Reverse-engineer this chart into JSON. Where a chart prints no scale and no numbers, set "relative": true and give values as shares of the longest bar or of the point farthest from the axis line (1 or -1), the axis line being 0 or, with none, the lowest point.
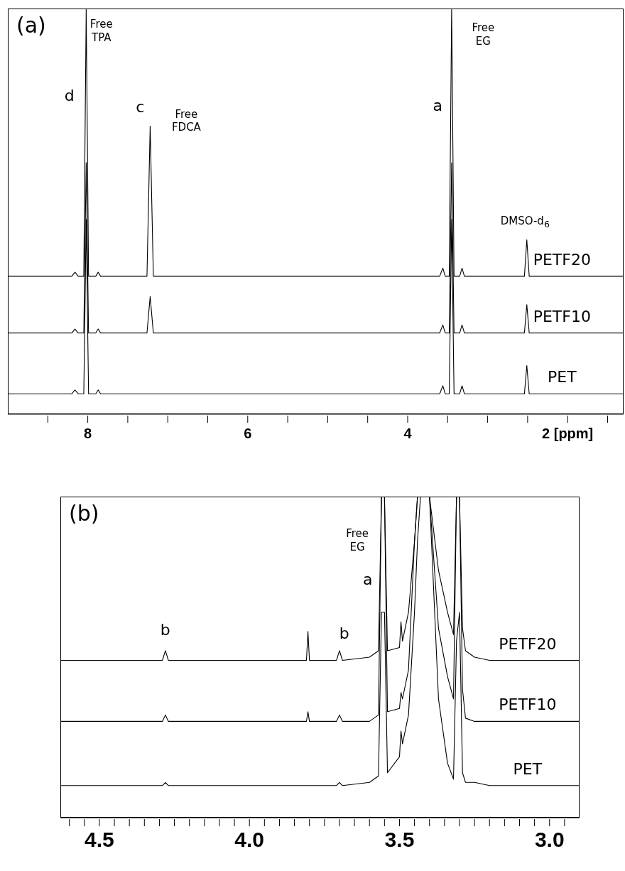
{
  "chart_data": [
    {
      "type": "line",
      "title": "(a)",
      "relative": true,
      "legend": false,
      "marker": "none",
      "line_style": "solid",
      "xlim": [
        9.0,
        1.3
      ],
      "xticks": [
        {
          "value": 8.5,
          "label": null
        },
        8,
        {
          "value": 7.5,
          "label": null
        },
        {
          "value": 7,
          "label": null
        },
        {
          "value": 6.5,
          "label": null
        },
        6,
        {
          "value": 5.5,
          "label": null
        },
        {
          "value": 5,
          "label": null
        },
        {
          "value": 4.5,
          "label": null
        },
        4,
        {
          "value": 3.5,
          "label": null
        },
        {
          "value": 3,
          "label": null
        },
        {
          "value": 2.5,
          "label": null
        },
        {
          "value": 2,
          "label": "2 [ppm]"
        },
        {
          "value": 1.5,
          "label": null
        }
      ],
      "x": [
        9.0,
        8.2,
        8.16,
        8.12,
        8.05,
        8.02,
        7.99,
        7.9,
        7.87,
        7.84,
        7.26,
        7.22,
        7.18,
        3.6,
        3.56,
        3.53,
        3.48,
        3.45,
        3.42,
        3.35,
        3.32,
        3.29,
        2.54,
        2.51,
        2.48,
        1.3
      ],
      "series": [
        {
          "name": "PETF20",
          "color": "#000000",
          "values": [
            0.34,
            0.34,
            0.35,
            0.34,
            0.34,
            1,
            0.34,
            0.34,
            0.35,
            0.34,
            0.34,
            0.71,
            0.34,
            0.34,
            0.36,
            0.34,
            0.34,
            1,
            0.34,
            0.34,
            0.36,
            0.34,
            0.34,
            0.43,
            0.34,
            0.34
          ]
        },
        {
          "name": "PETF10",
          "color": "#000000",
          "values": [
            0.2,
            0.2,
            0.21,
            0.2,
            0.2,
            0.62,
            0.2,
            0.2,
            0.21,
            0.2,
            0.2,
            0.29,
            0.2,
            0.2,
            0.22,
            0.2,
            0.2,
            0.62,
            0.2,
            0.2,
            0.22,
            0.2,
            0.2,
            0.27,
            0.2,
            0.2
          ]
        },
        {
          "name": "PET",
          "color": "#000000",
          "values": [
            0.05,
            0.05,
            0.06,
            0.05,
            0.05,
            0.48,
            0.05,
            0.05,
            0.06,
            0.05,
            0.05,
            0.05,
            0.05,
            0.05,
            0.07,
            0.05,
            0.05,
            0.48,
            0.05,
            0.05,
            0.07,
            0.05,
            0.05,
            0.12,
            0.05,
            0.05
          ]
        }
      ],
      "annotations": [
        "d",
        "Free TPA",
        "c",
        "Free FDCA",
        "a",
        "Free EG",
        "DMSO-d$_{6}$"
      ]
    },
    {
      "type": "line",
      "title": "(b)",
      "relative": true,
      "legend": false,
      "marker": "none",
      "line_style": "solid",
      "xlim": [
        4.63,
        2.9
      ],
      "xticks": [
        {
          "value": 4.6,
          "label": null
        },
        {
          "value": 4.55,
          "label": null
        },
        4.5,
        {
          "value": 4.45,
          "label": null
        },
        {
          "value": 4.4,
          "label": null
        },
        {
          "value": 4.35,
          "label": null
        },
        {
          "value": 4.3,
          "label": null
        },
        {
          "value": 4.25,
          "label": null
        },
        {
          "value": 4.2,
          "label": null
        },
        {
          "value": 4.15,
          "label": null
        },
        {
          "value": 4.1,
          "label": null
        },
        {
          "value": 4.05,
          "label": null
        },
        {
          "value": 4,
          "label": "4.0"
        },
        {
          "value": 3.95,
          "label": null
        },
        {
          "value": 3.9,
          "label": null
        },
        {
          "value": 3.85,
          "label": null
        },
        {
          "value": 3.8,
          "label": null
        },
        {
          "value": 3.75,
          "label": null
        },
        {
          "value": 3.7,
          "label": null
        },
        {
          "value": 3.65,
          "label": null
        },
        {
          "value": 3.6,
          "label": null
        },
        {
          "value": 3.55,
          "label": null
        },
        3.5,
        {
          "value": 3.45,
          "label": null
        },
        {
          "value": 3.4,
          "label": null
        },
        {
          "value": 3.35,
          "label": null
        },
        {
          "value": 3.3,
          "label": null
        },
        {
          "value": 3.25,
          "label": null
        },
        {
          "value": 3.2,
          "label": null
        },
        {
          "value": 3.15,
          "label": null
        },
        {
          "value": 3.1,
          "label": null
        },
        {
          "value": 3.05,
          "label": null
        },
        {
          "value": 3,
          "label": "3.0"
        },
        {
          "value": 2.95,
          "label": null
        }
      ],
      "x": [
        4.63,
        4.4,
        4.29,
        4.28,
        4.27,
        4.0,
        3.81,
        3.805,
        3.8,
        3.71,
        3.7,
        3.69,
        3.6,
        3.57,
        3.56,
        3.55,
        3.54,
        3.5,
        3.495,
        3.49,
        3.47,
        3.45,
        3.44,
        3.43,
        3.4,
        3.37,
        3.34,
        3.32,
        3.31,
        3.3,
        3.29,
        3.28,
        3.25,
        3.2,
        2.9
      ],
      "series": [
        {
          "name": "PETF20",
          "color": "#000000",
          "values": [
            0.49,
            0.49,
            0.49,
            0.52,
            0.49,
            0.49,
            0.49,
            0.58,
            0.49,
            0.49,
            0.52,
            0.49,
            0.5,
            0.52,
            1,
            1,
            0.52,
            0.53,
            0.61,
            0.55,
            0.64,
            0.86,
            1,
            1,
            1,
            0.77,
            0.64,
            0.57,
            1,
            1,
            0.59,
            0.52,
            0.5,
            0.49,
            0.49
          ]
        },
        {
          "name": "PETF10",
          "color": "#000000",
          "values": [
            0.3,
            0.3,
            0.3,
            0.32,
            0.3,
            0.3,
            0.3,
            0.33,
            0.3,
            0.3,
            0.32,
            0.3,
            0.3,
            0.32,
            1,
            1,
            0.33,
            0.34,
            0.39,
            0.37,
            0.46,
            0.86,
            1,
            1,
            1,
            0.59,
            0.44,
            0.37,
            1,
            1,
            0.4,
            0.31,
            0.3,
            0.3,
            0.3
          ]
        },
        {
          "name": "PET",
          "color": "#000000",
          "values": [
            0.1,
            0.1,
            0.1,
            0.11,
            0.1,
            0.1,
            0.1,
            0.1,
            0.1,
            0.1,
            0.11,
            0.1,
            0.11,
            0.13,
            0.64,
            0.64,
            0.14,
            0.19,
            0.27,
            0.23,
            0.32,
            0.64,
            0.86,
            1,
            1,
            0.37,
            0.17,
            0.12,
            0.55,
            0.64,
            0.14,
            0.11,
            0.11,
            0.1,
            0.1
          ]
        }
      ],
      "annotations": [
        "Free EG",
        "a",
        "b",
        "b"
      ]
    }
  ]
}
